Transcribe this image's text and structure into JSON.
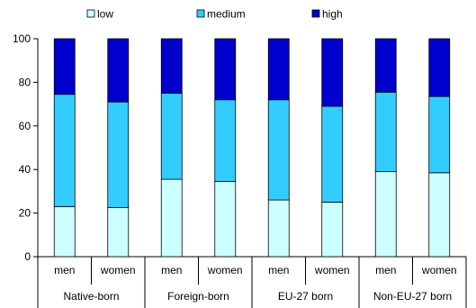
{
  "chart_data": {
    "type": "bar",
    "stacked": true,
    "categories": [
      "men",
      "women",
      "men",
      "women",
      "men",
      "women",
      "men",
      "women"
    ],
    "groups": [
      {
        "label": "Native-born",
        "size": 2
      },
      {
        "label": "Foreign-born",
        "size": 2
      },
      {
        "label": "EU-27 born",
        "size": 2
      },
      {
        "label": "Non-EU-27 born",
        "size": 2
      }
    ],
    "series": [
      {
        "name": "low",
        "color": "#ccffff",
        "values": [
          23,
          22.5,
          35.5,
          34.5,
          26,
          25,
          39,
          38.5
        ]
      },
      {
        "name": "medium",
        "color": "#33ccff",
        "values": [
          51.5,
          48.5,
          39.5,
          37.5,
          46,
          44,
          36.5,
          35
        ]
      },
      {
        "name": "high",
        "color": "#0000cc",
        "values": [
          25.5,
          29,
          25,
          28,
          28,
          31,
          24.5,
          26.5
        ]
      }
    ],
    "ylim": [
      0,
      100
    ],
    "yticks": [
      0,
      20,
      40,
      60,
      80,
      100
    ],
    "legend_position": "top",
    "grid": false
  }
}
